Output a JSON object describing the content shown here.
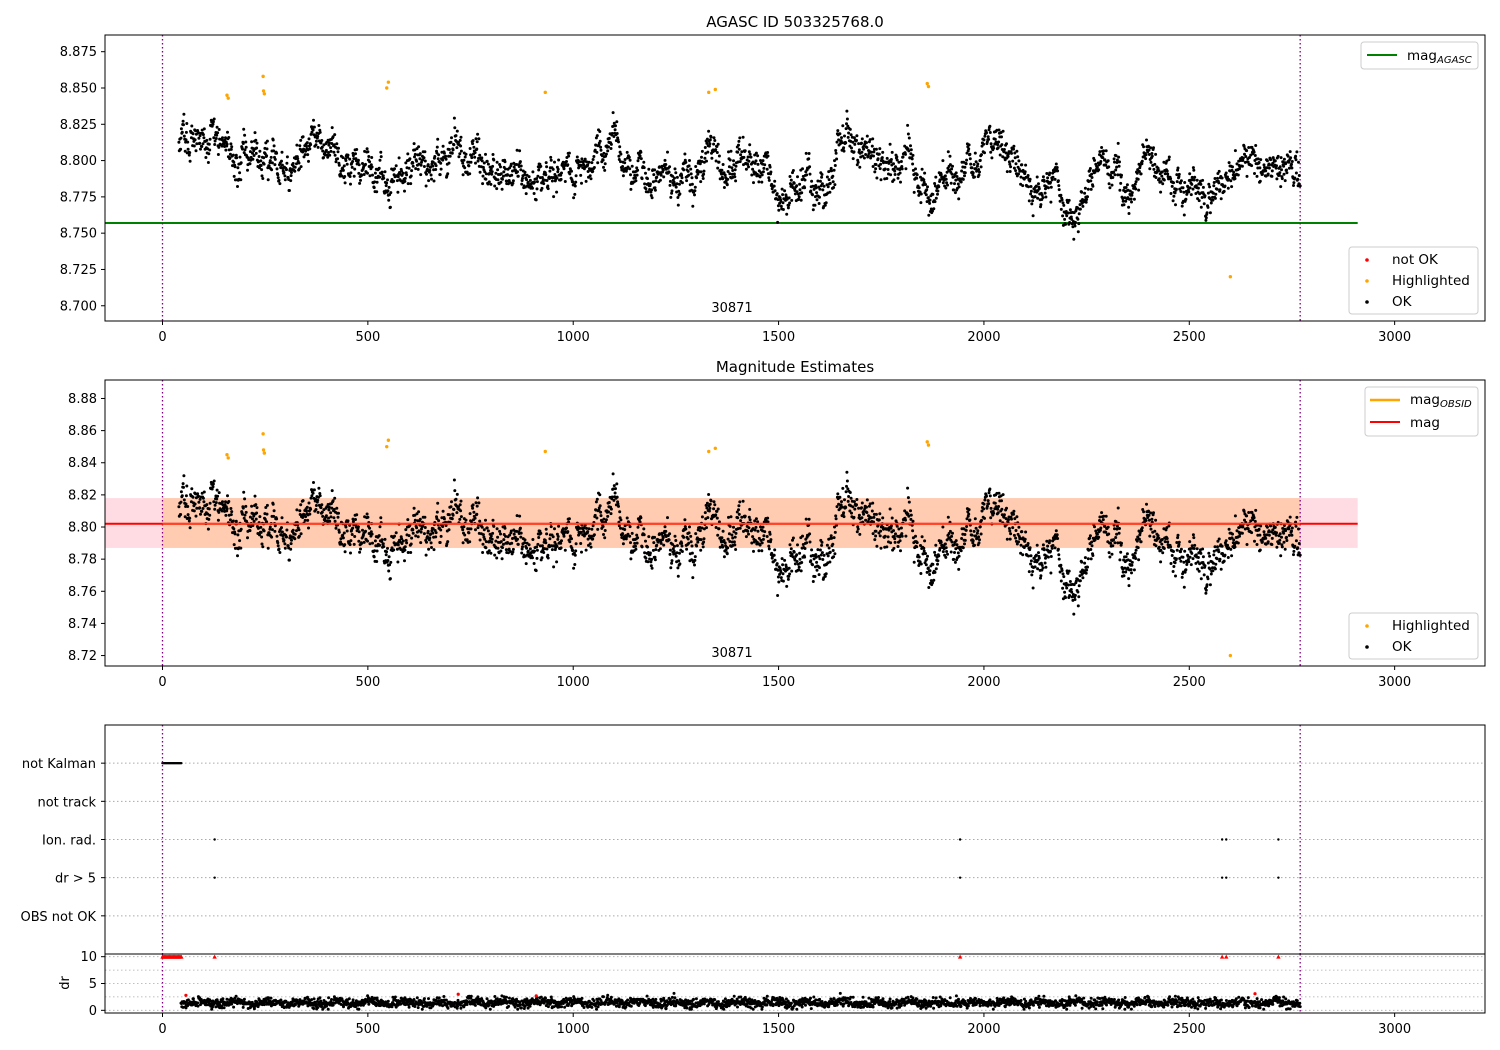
{
  "figure": {
    "title": "AGASC ID 503325768.0"
  },
  "colors": {
    "ok": "#000000",
    "highlighted": "#ffa500",
    "not_ok": "#ff0000",
    "mag_agasc_line": "#008000",
    "mag_line": "#ff0000",
    "mag_obsid_line": "#ffa500",
    "obs_band": "#ffc8a8",
    "global_band": "#ffdce3",
    "vline": "#800080"
  },
  "chart_data": [
    {
      "id": "top",
      "type": "scatter",
      "title": "AGASC ID 503325768.0",
      "xlim": [
        -140,
        3220
      ],
      "ylim": [
        8.6895,
        8.8865
      ],
      "x_ticks": [
        0,
        500,
        1000,
        1500,
        2000,
        2500,
        3000
      ],
      "y_ticks": [
        8.7,
        8.725,
        8.75,
        8.775,
        8.8,
        8.825,
        8.85,
        8.875
      ],
      "y_tick_labels": [
        "8.700",
        "8.725",
        "8.750",
        "8.775",
        "8.800",
        "8.825",
        "8.850",
        "8.875"
      ],
      "vlines": [
        0,
        2770
      ],
      "mag_agasc": 8.757,
      "mag_agasc_xrange": [
        -140,
        2910
      ],
      "obsid_label": "30871",
      "obsid_label_x": 1380,
      "series": [
        {
          "name": "OK",
          "x_range": [
            40,
            2770
          ],
          "n_points": 2700,
          "level": 8.8,
          "noise": 0.012,
          "slope": -4.2e-06
        },
        {
          "name": "Highlighted",
          "x": [
            157,
            160,
            245,
            246,
            248,
            546,
            550,
            932,
            1330,
            1346,
            1862,
            1865,
            2600
          ],
          "y": [
            8.845,
            8.843,
            8.858,
            8.848,
            8.846,
            8.85,
            8.854,
            8.847,
            8.847,
            8.849,
            8.853,
            8.851,
            8.72
          ]
        },
        {
          "name": "not OK",
          "x": [],
          "y": []
        }
      ],
      "legend_lines": [
        {
          "label": "mag",
          "sub": "AGASC"
        }
      ],
      "legend_points": [
        "not OK",
        "Highlighted",
        "OK"
      ]
    },
    {
      "id": "middle",
      "type": "scatter",
      "title": "Magnitude Estimates",
      "xlim": [
        -140,
        3220
      ],
      "ylim": [
        8.7135,
        8.8915
      ],
      "x_ticks": [
        0,
        500,
        1000,
        1500,
        2000,
        2500,
        3000
      ],
      "y_ticks": [
        8.72,
        8.74,
        8.76,
        8.78,
        8.8,
        8.82,
        8.84,
        8.86,
        8.88
      ],
      "y_tick_labels": [
        "8.72",
        "8.74",
        "8.76",
        "8.78",
        "8.80",
        "8.82",
        "8.84",
        "8.86",
        "8.88"
      ],
      "vlines": [
        0,
        2770
      ],
      "mag": 8.802,
      "mag_xrange": [
        -140,
        2910
      ],
      "mag_band": [
        8.787,
        8.818
      ],
      "obsid_label": "30871",
      "obsid_label_x": 1380,
      "legend_lines": [
        {
          "label": "mag",
          "sub": "OBSID"
        },
        {
          "label": "mag",
          "sub": ""
        }
      ],
      "legend_points": [
        "Highlighted",
        "OK"
      ]
    },
    {
      "id": "flags",
      "type": "scatter",
      "xlim": [
        -140,
        3220
      ],
      "categories": [
        "not Kalman",
        "not track",
        "Ion. rad.",
        "dr > 5",
        "OBS not OK"
      ],
      "vlines": [
        0,
        2770
      ],
      "flag_points": {
        "not Kalman": [
          0,
          2,
          4,
          6,
          8,
          10,
          12,
          14,
          16,
          18,
          20,
          22,
          24,
          26,
          28,
          30,
          32,
          34,
          36,
          38,
          40,
          42,
          44,
          46
        ],
        "not track": [],
        "Ion. rad.": [
          127,
          1942,
          2580,
          2590,
          2717
        ],
        "dr > 5": [
          127,
          1942,
          2580,
          2590,
          2717
        ],
        "OBS not OK": []
      }
    },
    {
      "id": "dr",
      "type": "scatter",
      "ylabel": "dr",
      "xlim": [
        -140,
        3220
      ],
      "ylim": [
        -0.5,
        10.5
      ],
      "x_ticks": [
        0,
        500,
        1000,
        1500,
        2000,
        2500,
        3000
      ],
      "y_ticks": [
        0,
        5,
        10
      ],
      "y_tick_labels": [
        "0",
        "5",
        "10"
      ],
      "vlines": [
        0,
        2770
      ],
      "clip_value": 10,
      "clipped_x": [
        0,
        2,
        4,
        6,
        8,
        10,
        12,
        14,
        16,
        18,
        20,
        22,
        24,
        26,
        28,
        30,
        32,
        34,
        36,
        38,
        40,
        42,
        44,
        46,
        127,
        1942,
        2580,
        2590,
        2717
      ],
      "red_x": [
        57,
        720,
        910,
        2660
      ],
      "red_y": [
        2.8,
        3.0,
        2.7,
        3.1
      ],
      "series": [
        {
          "name": "OK",
          "x_range": [
            45,
            2770
          ],
          "n_points": 2700,
          "level": 1.4,
          "noise": 0.45
        }
      ]
    }
  ]
}
